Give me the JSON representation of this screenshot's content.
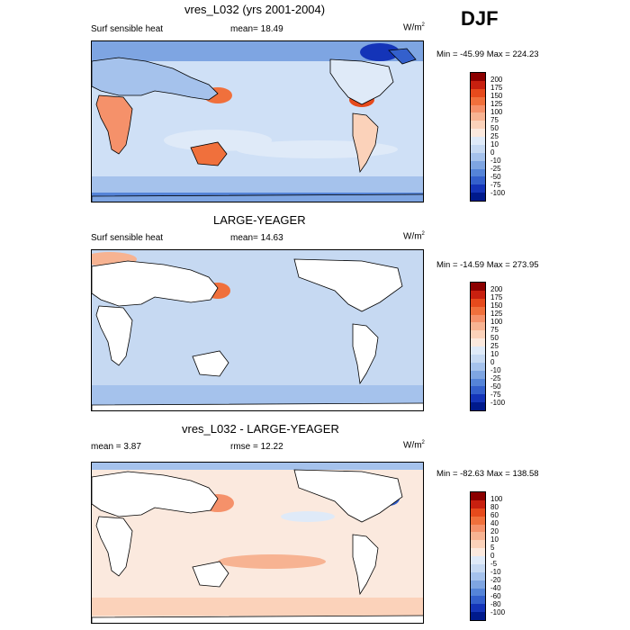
{
  "season": "DJF",
  "panels": [
    {
      "title": "vres_L032 (yrs 2001-2004)",
      "left": "Surf sensible heat",
      "center": "mean=  18.49",
      "units": "W/m",
      "units_sup": "2",
      "minmax": "Min = -45.99 Max = 224.23",
      "colorbar_labels": [
        "200",
        "175",
        "150",
        "125",
        "100",
        "75",
        "50",
        "25",
        "10",
        "0",
        "-10",
        "-25",
        "-50",
        "-75",
        "-100"
      ],
      "colorbar_colors": [
        "#8b0000",
        "#c8200f",
        "#e64a1c",
        "#f0703c",
        "#f5916a",
        "#f7b392",
        "#fbd2ba",
        "#fbe9de",
        "#dfeaf8",
        "#c6d9f2",
        "#a5c2ec",
        "#7ea5e2",
        "#5584d8",
        "#3460cc",
        "#1434b8",
        "#001a8c"
      ]
    },
    {
      "title": "LARGE-YEAGER",
      "left": "Surf sensible heat",
      "center": "mean=  14.63",
      "units": "W/m",
      "units_sup": "2",
      "minmax": "Min = -14.59 Max = 273.95",
      "colorbar_labels": [
        "200",
        "175",
        "150",
        "125",
        "100",
        "75",
        "50",
        "25",
        "10",
        "0",
        "-10",
        "-25",
        "-50",
        "-75",
        "-100"
      ],
      "colorbar_colors": [
        "#8b0000",
        "#c8200f",
        "#e64a1c",
        "#f0703c",
        "#f5916a",
        "#f7b392",
        "#fbd2ba",
        "#fbe9de",
        "#dfeaf8",
        "#c6d9f2",
        "#a5c2ec",
        "#7ea5e2",
        "#5584d8",
        "#3460cc",
        "#1434b8",
        "#001a8c"
      ]
    },
    {
      "title": "vres_L032 - LARGE-YEAGER",
      "left": "mean =   3.87",
      "center": "rmse =  12.22",
      "units": "W/m",
      "units_sup": "2",
      "minmax": "Min = -82.63 Max = 138.58",
      "colorbar_labels": [
        "100",
        "80",
        "60",
        "40",
        "20",
        "10",
        "5",
        "0",
        "-5",
        "-10",
        "-20",
        "-40",
        "-60",
        "-80",
        "-100"
      ],
      "colorbar_colors": [
        "#8b0000",
        "#c8200f",
        "#e64a1c",
        "#f0703c",
        "#f5916a",
        "#f7b392",
        "#fbd2ba",
        "#fbe9de",
        "#dfeaf8",
        "#c6d9f2",
        "#a5c2ec",
        "#7ea5e2",
        "#5584d8",
        "#3460cc",
        "#1434b8",
        "#001a8c"
      ]
    }
  ]
}
